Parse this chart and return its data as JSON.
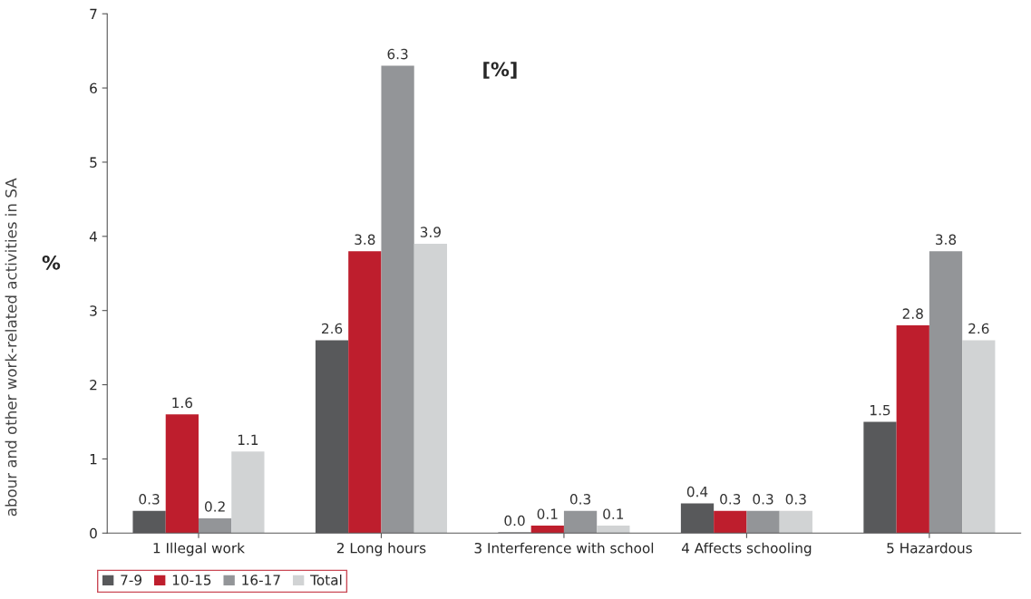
{
  "chart_data": {
    "type": "bar",
    "title": "[%]",
    "ylabel": "%",
    "annotations": [
      "abour and other work-related activities in SA"
    ],
    "categories": [
      "1 Illegal work",
      "2 Long hours",
      "3 Interference with school",
      "4 Affects schooling",
      "5 Hazardous"
    ],
    "series": [
      {
        "name": "7-9",
        "color": "#58595b",
        "values": [
          0.3,
          2.6,
          0.01,
          0.4,
          1.5
        ],
        "value_labels": [
          "0.3",
          "2.6",
          "0.0",
          "0.4",
          "1.5"
        ]
      },
      {
        "name": "10-15",
        "color": "#be1e2d",
        "values": [
          1.6,
          3.8,
          0.1,
          0.3,
          2.8
        ],
        "value_labels": [
          "1.6",
          "3.8",
          "0.1",
          "0.3",
          "2.8"
        ]
      },
      {
        "name": "16-17",
        "color": "#939598",
        "values": [
          0.2,
          6.3,
          0.3,
          0.3,
          3.8
        ],
        "value_labels": [
          "0.2",
          "6.3",
          "0.3",
          "0.3",
          "3.8"
        ]
      },
      {
        "name": "Total",
        "color": "#d1d3d4",
        "values": [
          1.1,
          3.9,
          0.1,
          0.3,
          2.6
        ],
        "value_labels": [
          "1.1",
          "3.9",
          "0.1",
          "0.3",
          "2.6"
        ]
      }
    ],
    "ylim": [
      0,
      7
    ],
    "yticks": [
      0,
      1,
      2,
      3,
      4,
      5,
      6,
      7
    ],
    "grid": false,
    "legend": "bottom left"
  }
}
